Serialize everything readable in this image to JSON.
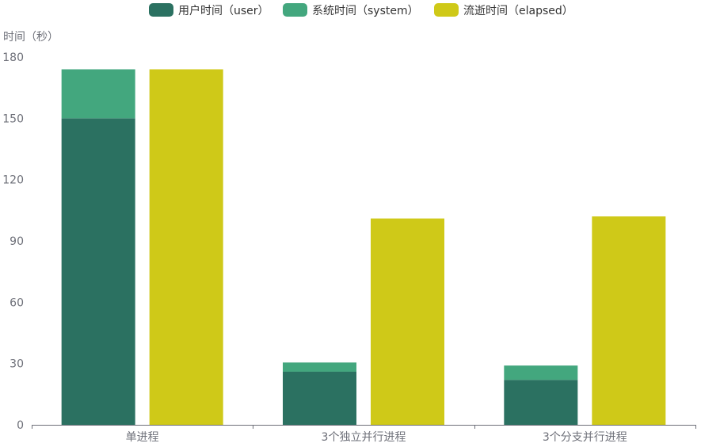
{
  "chart_data": {
    "type": "bar",
    "ylabel": "时间（秒）",
    "ylim": [
      0,
      180
    ],
    "yticks": [
      0,
      30,
      60,
      90,
      120,
      150,
      180
    ],
    "categories": [
      "单进程",
      "3个独立并行进程",
      "3个分支并行进程"
    ],
    "series": [
      {
        "name": "用户时间（user）",
        "stack": "cpu",
        "values": [
          150,
          26,
          22
        ],
        "color": "#2b7161"
      },
      {
        "name": "系统时间（system）",
        "stack": "cpu",
        "values": [
          24,
          4.5,
          7
        ],
        "color": "#43a77e"
      },
      {
        "name": "流逝时间（elapsed）",
        "stack": "elapsed",
        "values": [
          174,
          101,
          102
        ],
        "color": "#cfc918"
      }
    ],
    "legend_position": "top-center",
    "grid": false
  }
}
